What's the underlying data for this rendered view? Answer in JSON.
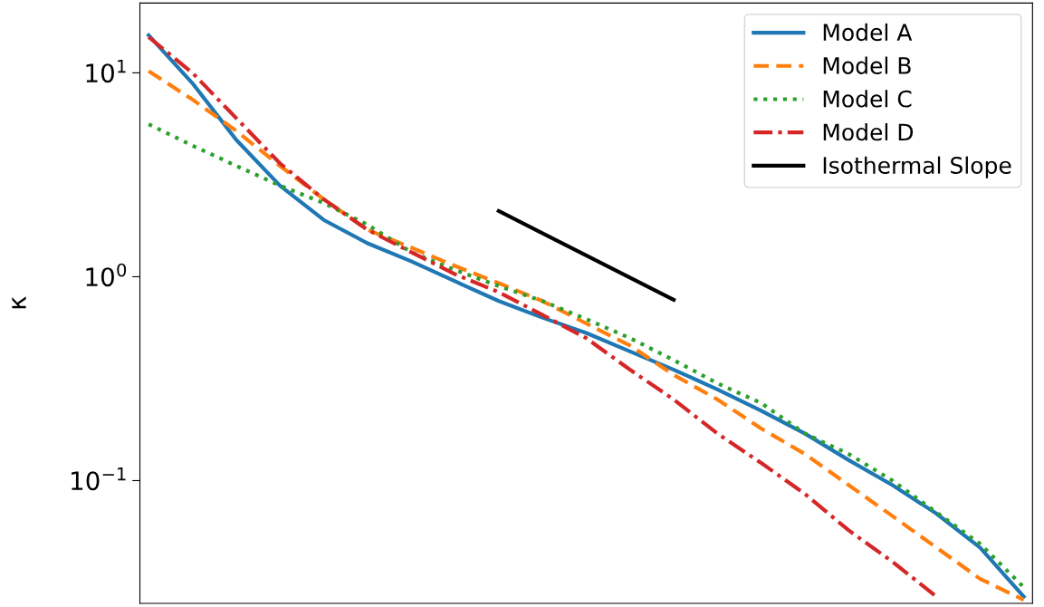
{
  "chart_data": {
    "type": "line",
    "ylabel": "κ",
    "log": "y",
    "ylim": [
      0.025,
      22
    ],
    "yticks": [
      {
        "value": 10,
        "label": "10$^{1}$"
      },
      {
        "value": 1,
        "label": "10$^{0}$"
      },
      {
        "value": 0.1,
        "label": "10$^{−1}$"
      }
    ],
    "tick_labels": "y",
    "legend": "top right",
    "grid": false,
    "categories": [
      null,
      null,
      null,
      null,
      null,
      null,
      null,
      null,
      null,
      null,
      null,
      null,
      null,
      null,
      null,
      null,
      null,
      null,
      null,
      null,
      null
    ],
    "series": [
      {
        "name": "Model A",
        "color": "#1f77b4",
        "line_style": "solid",
        "values": [
          15.3,
          8.9,
          4.7,
          2.8,
          1.9,
          1.46,
          1.19,
          0.95,
          0.76,
          0.63,
          0.53,
          0.43,
          0.35,
          0.28,
          0.22,
          0.17,
          0.126,
          0.095,
          0.069,
          0.047,
          0.027
        ]
      },
      {
        "name": "Model B",
        "color": "#ff7f0e",
        "line_style": "dashed",
        "values": [
          10.2,
          7.4,
          5.2,
          3.5,
          2.4,
          1.7,
          1.39,
          1.13,
          0.93,
          0.76,
          0.59,
          0.46,
          0.33,
          0.25,
          0.18,
          0.135,
          0.095,
          0.067,
          0.047,
          0.033,
          0.026
        ]
      },
      {
        "name": "Model C",
        "color": "#2ca02c",
        "line_style": "dotted",
        "values": [
          5.6,
          4.4,
          3.5,
          2.8,
          2.3,
          1.8,
          1.32,
          1.08,
          0.9,
          0.76,
          0.62,
          0.5,
          0.39,
          0.3,
          0.24,
          0.17,
          0.135,
          0.1,
          0.07,
          0.049,
          0.03
        ]
      },
      {
        "name": "Model D",
        "color": "#d62728",
        "line_style": "dashdot",
        "values": [
          15.0,
          10,
          6.0,
          3.6,
          2.4,
          1.7,
          1.32,
          1.03,
          0.84,
          0.65,
          0.5,
          0.35,
          0.25,
          0.17,
          0.122,
          0.086,
          0.057,
          0.04,
          0.027,
          null,
          null
        ]
      },
      {
        "name": "Isothermal Slope",
        "color": "#000000",
        "line_style": "solid",
        "values": [
          null,
          null,
          null,
          null,
          null,
          null,
          null,
          null,
          2.1,
          null,
          null,
          null,
          0.77,
          null,
          null,
          null,
          null,
          null,
          null,
          null,
          null
        ]
      }
    ]
  }
}
